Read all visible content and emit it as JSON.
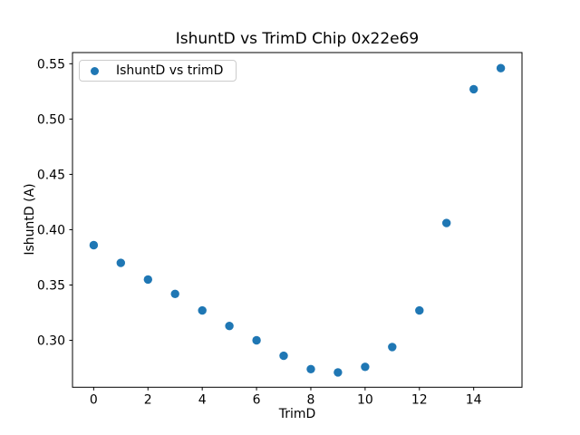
{
  "figure": {
    "background": "#ffffff",
    "text_color": "#000000",
    "spine_color": "#000000"
  },
  "chart_data": {
    "type": "scatter",
    "title": "IshuntD vs TrimD Chip 0x22e69",
    "xlabel": "TrimD",
    "ylabel": "IshuntD (A)",
    "legend": {
      "label": "IshuntD vs trimD",
      "position": "upper left"
    },
    "marker_color": "#1f77b4",
    "grid": false,
    "x": [
      0,
      1,
      2,
      3,
      4,
      5,
      6,
      7,
      8,
      9,
      10,
      11,
      12,
      13,
      14,
      15
    ],
    "y": [
      0.386,
      0.37,
      0.355,
      0.342,
      0.327,
      0.313,
      0.3,
      0.286,
      0.274,
      0.271,
      0.276,
      0.294,
      0.327,
      0.406,
      0.527,
      0.546
    ],
    "xlim": [
      -0.78,
      15.78
    ],
    "ylim": [
      0.2576,
      0.5601
    ],
    "xticks": [
      0,
      2,
      4,
      6,
      8,
      10,
      12,
      14
    ],
    "yticks": [
      0.3,
      0.35,
      0.4,
      0.45,
      0.5,
      0.55
    ],
    "ytick_decimals": 2
  }
}
